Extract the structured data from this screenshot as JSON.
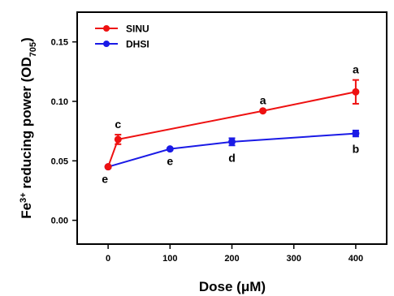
{
  "chart_data": {
    "type": "line",
    "xlabel_prefix": "Dose (",
    "xlabel_unit": "μM",
    "xlabel_suffix": ")",
    "ylabel_base": "Fe",
    "ylabel_sup": "3+",
    "ylabel_mid": " reducing power (OD",
    "ylabel_sub": "705",
    "ylabel_end": ")",
    "xlim": [
      -50,
      450
    ],
    "ylim": [
      -0.02,
      0.175
    ],
    "xticks": [
      0,
      100,
      200,
      300,
      400
    ],
    "xtick_labels": [
      "0",
      "100",
      "200",
      "300",
      "400"
    ],
    "yticks": [
      0.0,
      0.05,
      0.1,
      0.15
    ],
    "ytick_labels": [
      "0.00",
      "0.05",
      "0.10",
      "0.15"
    ],
    "grid": false,
    "legend_position": "top-left",
    "series": [
      {
        "name": "SINU",
        "color": "#ee1111",
        "points": [
          {
            "x": 0,
            "y": 0.045,
            "err": 0.0,
            "label": "",
            "label_side": "none"
          },
          {
            "x": 16,
            "y": 0.068,
            "err": 0.004,
            "label": "c",
            "label_side": "above"
          },
          {
            "x": 250,
            "y": 0.092,
            "err": 0.0,
            "label": "a",
            "label_side": "above"
          },
          {
            "x": 400,
            "y": 0.108,
            "err": 0.01,
            "label": "a",
            "label_side": "above"
          }
        ]
      },
      {
        "name": "DHSI",
        "color": "#1a1ae6",
        "points": [
          {
            "x": 0,
            "y": 0.045,
            "err": 0.0,
            "label": "e",
            "label_side": "below"
          },
          {
            "x": 100,
            "y": 0.06,
            "err": 0.0,
            "label": "e",
            "label_side": "below"
          },
          {
            "x": 200,
            "y": 0.066,
            "err": 0.003,
            "label": "d",
            "label_side": "below"
          },
          {
            "x": 400,
            "y": 0.073,
            "err": 0.0025,
            "label": "b",
            "label_side": "below"
          }
        ]
      }
    ]
  }
}
